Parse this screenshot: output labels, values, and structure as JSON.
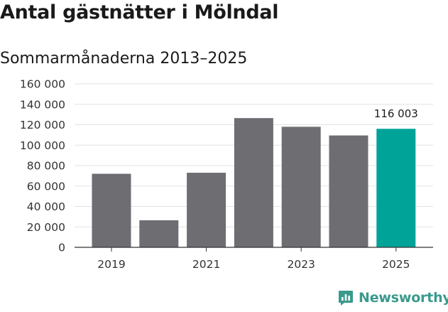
{
  "title": "Antal gästnätter i Mölndal",
  "subtitle": "Sommarmånaderna 2013–2025",
  "brand": {
    "name": "Newsworthy",
    "icon": "newsworthy-logo-icon",
    "color": "#3a9a8c"
  },
  "chart_data": {
    "type": "bar",
    "title": "Antal gästnätter i Mölndal",
    "subtitle": "Sommarmånaderna 2013–2025",
    "categories": [
      "2019",
      "2020",
      "2021",
      "2022",
      "2023",
      "2024",
      "2025"
    ],
    "x_tick_labels": [
      "2019",
      "",
      "2021",
      "",
      "2023",
      "",
      "2025"
    ],
    "values": [
      72000,
      26500,
      73000,
      126500,
      118000,
      109500,
      116003
    ],
    "highlight": {
      "index": 6,
      "label": "116 003",
      "color": "#00a398"
    },
    "bar_color": "#6e6d72",
    "ylim": [
      0,
      160000
    ],
    "yticks": [
      0,
      20000,
      40000,
      60000,
      80000,
      100000,
      120000,
      140000,
      160000
    ],
    "ytick_labels": [
      "0",
      "20 000",
      "40 000",
      "60 000",
      "80 000",
      "100 000",
      "120 000",
      "140 000",
      "160 000"
    ],
    "grid": true,
    "xlabel": "",
    "ylabel": ""
  }
}
